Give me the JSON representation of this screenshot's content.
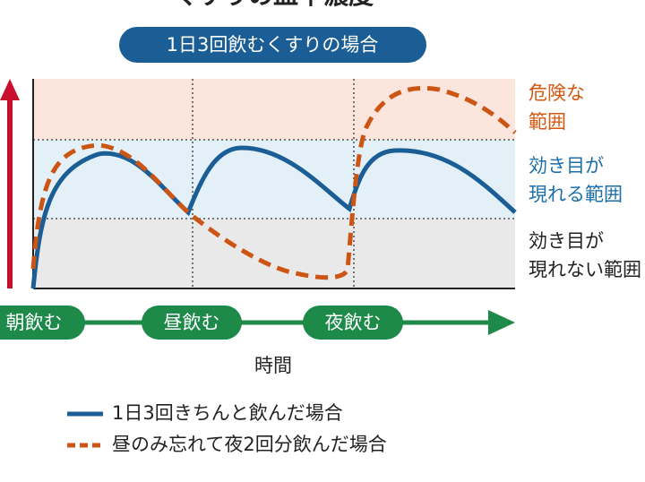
{
  "title": "くすりの血中濃度",
  "subtitle": "1日3回飲むくすりの場合",
  "zones": [
    {
      "lines": [
        "危険な",
        "範囲"
      ]
    },
    {
      "lines": [
        "効き目が",
        "現れる範囲"
      ]
    },
    {
      "lines": [
        "効き目が",
        "現れない範囲"
      ]
    }
  ],
  "timeline": [
    "朝飲む",
    "昼飲む",
    "夜飲む"
  ],
  "x_label": "時間",
  "legend": [
    "1日3回きちんと飲んだ場合",
    "昼のみ忘れて夜2回分飲んだ場合"
  ]
}
